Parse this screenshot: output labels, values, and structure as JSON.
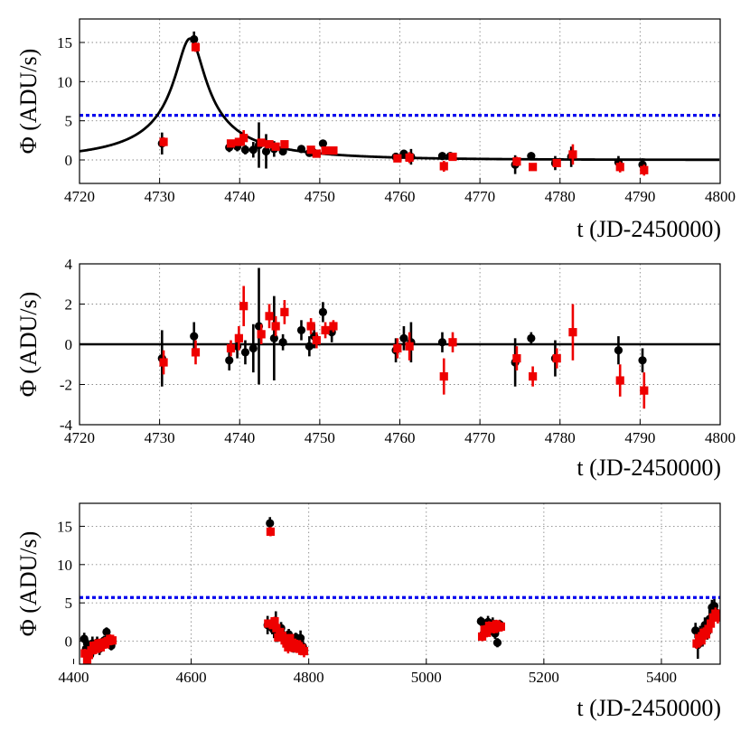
{
  "figure": {
    "type": "multi-panel light curve"
  },
  "chart_data": [
    {
      "type": "scatter",
      "xlabel": "t (JD-2450000)",
      "ylabel": "Φ (ADU/s)",
      "xlim": [
        4720,
        4800
      ],
      "ylim": [
        -3,
        18
      ],
      "xticks": [
        4720,
        4730,
        4740,
        4750,
        4760,
        4770,
        4780,
        4790,
        4800
      ],
      "yticks": [
        0,
        5,
        10,
        15
      ],
      "grid": true,
      "threshold": {
        "y": 5.7,
        "color": "#0000ee",
        "style": "dotted"
      },
      "model_curve": {
        "color": "#000000",
        "t0": 4733.8,
        "peak": 15.5,
        "u0": 0.095,
        "tE": 20.0,
        "baseline": 0.0
      },
      "series": [
        {
          "marker": "circle",
          "color": "#000000",
          "x": [
            4730.3,
            4734.3,
            4738.7,
            4739.7,
            4740.7,
            4741.7,
            4742.4,
            4743.3,
            4744.3,
            4745.4,
            4747.7,
            4748.7,
            4749.3,
            4750.4,
            4751.5,
            4759.5,
            4760.5,
            4761.4,
            4765.3,
            4766.3,
            4774.4,
            4776.4,
            4779.4,
            4781.4,
            4787.3,
            4790.3
          ],
          "y": [
            2.1,
            15.4,
            1.6,
            1.7,
            1.3,
            1.3,
            1.9,
            1.1,
            1.4,
            1.1,
            1.4,
            0.9,
            0.9,
            2.1,
            1.1,
            0.4,
            0.8,
            0.4,
            0.5,
            0.5,
            -0.6,
            0.5,
            -0.4,
            0.4,
            -0.3,
            -0.6
          ],
          "err": [
            1.4,
            1.0,
            0.6,
            0.6,
            0.6,
            1.0,
            2.9,
            2.2,
            1.0,
            0.5,
            0.5,
            0.5,
            0.6,
            0.5,
            0.5,
            0.5,
            0.5,
            1.0,
            0.5,
            0.5,
            1.2,
            0.5,
            0.9,
            1.3,
            0.8,
            0.8
          ]
        },
        {
          "marker": "square",
          "color": "#ee0000",
          "x": [
            4730.5,
            4734.5,
            4738.9,
            4739.9,
            4740.5,
            4742.7,
            4743.7,
            4744.5,
            4745.6,
            4748.9,
            4749.6,
            4750.7,
            4751.7,
            4759.7,
            4761.2,
            4765.5,
            4766.6,
            4774.6,
            4776.6,
            4779.6,
            4781.6,
            4787.5,
            4790.5
          ],
          "y": [
            2.3,
            14.4,
            2.1,
            2.3,
            2.8,
            2.2,
            2.0,
            1.7,
            2.0,
            1.3,
            0.8,
            1.2,
            1.2,
            0.2,
            0.3,
            -0.8,
            0.4,
            -0.2,
            -0.9,
            -0.4,
            0.7,
            -0.9,
            -1.3
          ],
          "err": [
            0.6,
            0.6,
            0.4,
            0.5,
            1.0,
            0.5,
            0.5,
            0.5,
            0.4,
            0.4,
            0.4,
            0.4,
            0.3,
            0.4,
            0.7,
            0.7,
            0.4,
            0.6,
            0.3,
            0.5,
            1.3,
            0.7,
            0.7
          ]
        }
      ]
    },
    {
      "type": "scatter",
      "xlabel": "t (JD-2450000)",
      "ylabel": "Φ (ADU/s)",
      "xlim": [
        4720,
        4800
      ],
      "ylim": [
        -4,
        4
      ],
      "xticks": [
        4720,
        4730,
        4740,
        4750,
        4760,
        4770,
        4780,
        4790,
        4800
      ],
      "yticks": [
        -4,
        -2,
        0,
        2,
        4
      ],
      "grid": true,
      "zero_line": {
        "y": 0,
        "color": "#000000"
      },
      "series": [
        {
          "marker": "circle",
          "color": "#000000",
          "x": [
            4730.3,
            4734.3,
            4738.7,
            4739.7,
            4740.7,
            4741.7,
            4742.4,
            4744.3,
            4745.4,
            4747.7,
            4748.7,
            4749.3,
            4750.4,
            4751.5,
            4759.5,
            4760.5,
            4761.4,
            4765.3,
            4774.4,
            4776.4,
            4779.4,
            4787.3,
            4790.3
          ],
          "y": [
            -0.7,
            0.4,
            -0.8,
            -0.1,
            -0.4,
            -0.2,
            0.9,
            0.3,
            0.1,
            0.7,
            -0.1,
            0.4,
            1.6,
            0.6,
            -0.3,
            0.3,
            0.1,
            0.1,
            -0.9,
            0.3,
            -0.7,
            -0.3,
            -0.8
          ],
          "err": [
            1.4,
            0.7,
            0.5,
            0.6,
            0.6,
            1.2,
            2.9,
            2.1,
            0.4,
            0.5,
            0.5,
            0.6,
            0.5,
            0.5,
            0.6,
            0.6,
            1.0,
            0.5,
            1.2,
            0.3,
            0.9,
            0.7,
            0.6
          ]
        },
        {
          "marker": "square",
          "color": "#ee0000",
          "x": [
            4730.5,
            4734.5,
            4738.9,
            4739.9,
            4740.5,
            4742.7,
            4743.7,
            4744.5,
            4745.6,
            4748.9,
            4749.6,
            4750.7,
            4751.7,
            4759.7,
            4761.2,
            4765.5,
            4766.6,
            4774.6,
            4776.6,
            4779.6,
            4781.6,
            4787.5,
            4790.5
          ],
          "y": [
            -0.9,
            -0.4,
            -0.2,
            0.3,
            1.9,
            0.5,
            1.4,
            0.9,
            1.6,
            0.9,
            0.2,
            0.7,
            0.9,
            -0.2,
            -0.1,
            -1.6,
            0.1,
            -0.7,
            -1.6,
            -0.7,
            0.6,
            -1.8,
            -2.3
          ],
          "err": [
            0.6,
            0.6,
            0.4,
            0.6,
            1.0,
            0.5,
            0.6,
            0.5,
            0.6,
            0.4,
            0.4,
            0.4,
            0.3,
            0.5,
            0.7,
            0.9,
            0.5,
            0.6,
            0.5,
            0.5,
            1.4,
            0.8,
            0.9
          ]
        }
      ]
    },
    {
      "type": "scatter",
      "xlabel": "t (JD-2450000)",
      "ylabel": "Φ (ADU/s)",
      "xlim": [
        4410,
        5500
      ],
      "ylim": [
        -3,
        18
      ],
      "xticks": [
        4400,
        4600,
        4800,
        5000,
        5200,
        5400
      ],
      "yticks": [
        0,
        5,
        10,
        15
      ],
      "grid": true,
      "threshold": {
        "y": 5.7,
        "color": "#0000ee",
        "style": "dotted"
      },
      "series": [
        {
          "marker": "circle",
          "color": "#000000",
          "x": [
            4418,
            4421,
            4424,
            4428,
            4432,
            4436,
            4440,
            4444,
            4448,
            4452,
            4456,
            4460,
            4464,
            4730,
            4734,
            4738,
            4741,
            4744,
            4747,
            4750,
            4753,
            4757,
            4760,
            4763,
            4766,
            4770,
            4774,
            4778,
            4782,
            4786,
            4790,
            5093,
            5097,
            5101,
            5105,
            5109,
            5113,
            5117,
            5121,
            5125,
            5458,
            5462,
            5466,
            5470,
            5474,
            5478,
            5482,
            5486,
            5490,
            5494
          ],
          "y": [
            0.3,
            -1.0,
            -0.5,
            -1.8,
            -0.3,
            -0.7,
            -0.2,
            -1.0,
            -0.4,
            0.1,
            1.2,
            -0.2,
            -0.6,
            2.1,
            15.4,
            1.7,
            1.4,
            1.9,
            1.3,
            1.0,
            1.7,
            0.8,
            0.5,
            0.3,
            0.9,
            0.2,
            -0.6,
            0.5,
            -0.4,
            0.4,
            -0.7,
            2.6,
            0.9,
            1.8,
            2.5,
            1.5,
            2.3,
            1.0,
            -0.2,
            2.2,
            1.4,
            -0.5,
            1.0,
            0.6,
            2.1,
            1.2,
            2.9,
            4.4,
            4.6,
            3.7
          ],
          "err": [
            0.8,
            0.9,
            0.7,
            1.0,
            0.9,
            0.8,
            0.8,
            0.8,
            0.8,
            0.6,
            0.6,
            0.6,
            0.6,
            1.2,
            0.8,
            0.8,
            1.0,
            2.0,
            1.4,
            0.6,
            0.8,
            0.6,
            0.7,
            0.6,
            0.7,
            0.8,
            0.9,
            0.6,
            0.8,
            1.0,
            0.8,
            0.6,
            0.7,
            0.8,
            0.8,
            0.7,
            0.8,
            0.7,
            0.6,
            0.6,
            1.0,
            1.8,
            1.0,
            1.3,
            1.0,
            1.0,
            1.2,
            1.0,
            0.9,
            1.0
          ]
        },
        {
          "marker": "square",
          "color": "#ee0000",
          "x": [
            4419,
            4423,
            4426,
            4430,
            4434,
            4438,
            4442,
            4446,
            4450,
            4454,
            4458,
            4462,
            4466,
            4731,
            4735,
            4739,
            4742,
            4745,
            4748,
            4751,
            4755,
            4759,
            4762,
            4765,
            4768,
            4772,
            4776,
            4780,
            4784,
            4788,
            4792,
            5095,
            5099,
            5103,
            5107,
            5111,
            5115,
            5119,
            5123,
            5127,
            5460,
            5464,
            5468,
            5472,
            5476,
            5480,
            5484,
            5488,
            5492,
            5496
          ],
          "y": [
            -1.6,
            -2.4,
            -1.8,
            -1.2,
            -0.6,
            -1.0,
            -0.3,
            -0.8,
            -0.2,
            -0.4,
            0.0,
            0.3,
            0.1,
            2.3,
            14.3,
            2.1,
            2.6,
            1.7,
            0.5,
            1.2,
            0.7,
            0.1,
            -0.3,
            -0.8,
            0.4,
            -0.2,
            -0.9,
            -0.4,
            -1.0,
            -0.9,
            -1.3,
            0.6,
            1.5,
            1.1,
            2.0,
            1.9,
            1.6,
            2.2,
            1.8,
            1.9,
            -0.3,
            0.4,
            0.1,
            1.1,
            0.9,
            1.6,
            2.3,
            3.1,
            3.6,
            3.1
          ],
          "err": [
            0.6,
            0.8,
            0.7,
            0.6,
            0.6,
            0.7,
            0.6,
            0.6,
            0.6,
            0.6,
            0.6,
            0.6,
            0.6,
            0.5,
            0.6,
            0.4,
            0.6,
            0.5,
            0.5,
            0.4,
            0.5,
            0.5,
            0.6,
            0.8,
            0.5,
            0.6,
            0.5,
            0.6,
            0.8,
            0.8,
            0.8,
            0.6,
            0.6,
            0.6,
            0.6,
            0.6,
            0.6,
            0.6,
            0.6,
            0.6,
            0.7,
            0.8,
            0.7,
            0.7,
            0.7,
            0.7,
            0.7,
            0.8,
            0.8,
            0.8
          ]
        }
      ]
    }
  ]
}
